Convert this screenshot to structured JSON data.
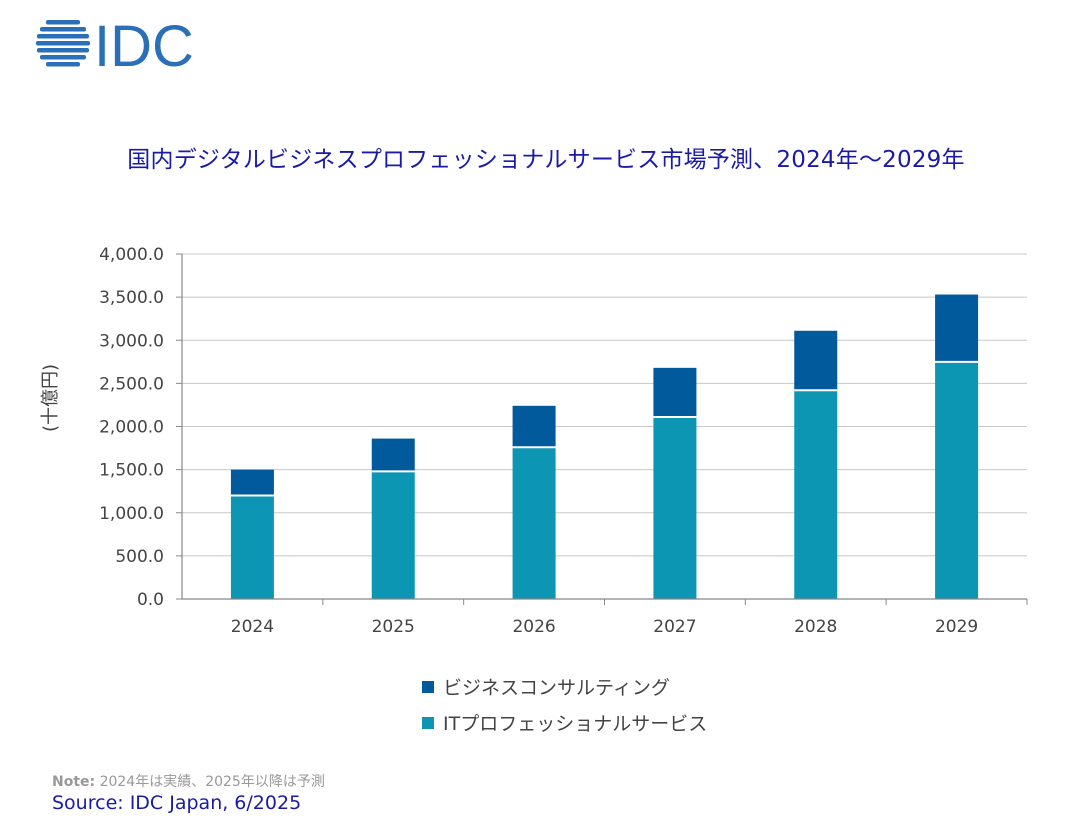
{
  "logo": {
    "text": "IDC",
    "color": "#2a6fb8"
  },
  "chart_data": {
    "type": "bar",
    "stacked": true,
    "title": "国内デジタルビジネスプロフェッショナルサービス市場予測、2024年〜2029年",
    "xlabel": "",
    "ylabel": "(十億円)",
    "categories": [
      "2024",
      "2025",
      "2026",
      "2027",
      "2028",
      "2029"
    ],
    "series": [
      {
        "name": "ITプロフェッショナルサービス",
        "values": [
          1200,
          1480,
          1760,
          2110,
          2420,
          2750
        ],
        "color": "#0d95b4"
      },
      {
        "name": "ビジネスコンサルティング",
        "values": [
          300,
          380,
          480,
          570,
          690,
          780
        ],
        "color": "#005a9c"
      }
    ],
    "ylim": [
      0,
      4000
    ],
    "yticks": [
      "0.0",
      "500.0",
      "1,000.0",
      "1,500.0",
      "2,000.0",
      "2,500.0",
      "3,000.0",
      "3,500.0",
      "4,000.0"
    ],
    "grid": true,
    "legend_position": "bottom"
  },
  "legend": [
    {
      "label": "ビジネスコンサルティング",
      "color": "#005a9c"
    },
    {
      "label": "ITプロフェッショナルサービス",
      "color": "#0d95b4"
    }
  ],
  "note": {
    "label": "Note:",
    "text": " 2024年は実績、2025年以降は予測"
  },
  "source": "Source: IDC Japan, 6/2025"
}
